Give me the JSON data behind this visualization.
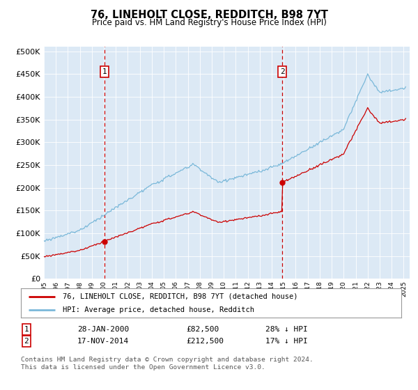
{
  "title": "76, LINEHOLT CLOSE, REDDITCH, B98 7YT",
  "subtitle": "Price paid vs. HM Land Registry's House Price Index (HPI)",
  "ylabel_ticks": [
    "£0",
    "£50K",
    "£100K",
    "£150K",
    "£200K",
    "£250K",
    "£300K",
    "£350K",
    "£400K",
    "£450K",
    "£500K"
  ],
  "ytick_values": [
    0,
    50000,
    100000,
    150000,
    200000,
    250000,
    300000,
    350000,
    400000,
    450000,
    500000
  ],
  "ylim": [
    0,
    510000
  ],
  "xlim_start": 1995.0,
  "xlim_end": 2025.5,
  "background_color": "#dce9f5",
  "fig_bg_color": "#ffffff",
  "hpi_color": "#7ab8d9",
  "price_color": "#cc0000",
  "vline_color": "#cc0000",
  "marker1_date": 2000.07,
  "marker1_price": 82500,
  "marker2_date": 2014.88,
  "marker2_price": 212500,
  "legend_line1": "76, LINEHOLT CLOSE, REDDITCH, B98 7YT (detached house)",
  "legend_line2": "HPI: Average price, detached house, Redditch",
  "marker1_label": "1",
  "marker1_text": "28-JAN-2000",
  "marker1_amount": "£82,500",
  "marker1_pct": "28% ↓ HPI",
  "marker2_label": "2",
  "marker2_text": "17-NOV-2014",
  "marker2_amount": "£212,500",
  "marker2_pct": "17% ↓ HPI",
  "footer": "Contains HM Land Registry data © Crown copyright and database right 2024.\nThis data is licensed under the Open Government Licence v3.0.",
  "xtick_years": [
    1995,
    1996,
    1997,
    1998,
    1999,
    2000,
    2001,
    2002,
    2003,
    2004,
    2005,
    2006,
    2007,
    2008,
    2009,
    2010,
    2011,
    2012,
    2013,
    2014,
    2015,
    2016,
    2017,
    2018,
    2019,
    2020,
    2021,
    2022,
    2023,
    2024,
    2025
  ]
}
